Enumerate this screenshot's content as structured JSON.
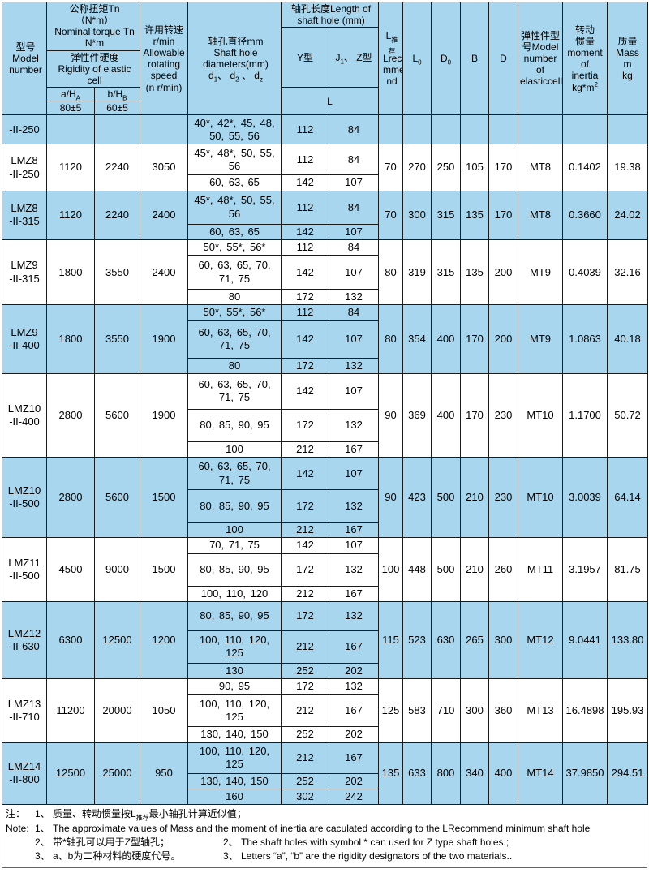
{
  "colors": {
    "row_blue": "#a7d6ee",
    "border": "#1b1b1b"
  },
  "header": {
    "model": "型号\nModel\nnumber",
    "torque_label": "公称扭矩Tn（N*m）\nNominal torque Tn\nN*m",
    "rigidity_label": "弹性件硬度\nRigidity of elastic cell",
    "a_col": "a/H<sub>A</sub>",
    "b_col": "b/H<sub>B</sub>",
    "a_tol": "80±5",
    "b_tol": "60±5",
    "speed": "许用转速\nr/min\nAllowable\nrotating\nspeed\n(n r/min)",
    "diameters": "轴孔直径mm<br>Shaft hole<br>diameters(mm)<br>d<sub>1</sub>、 d<sub>2</sub> 、 d<sub>z</sub>",
    "hole_length": "轴孔长度Length of\nshaft hole (mm)",
    "y_type": "Y型",
    "jz_type": "J<sub>1</sub>、 Z型",
    "l_merged": "L",
    "l_recommend": "L<sub>推荐</sub><br>Lreco<br>mme<br>nd",
    "l0": "L<sub>0</sub>",
    "d0": "D<sub>0</sub>",
    "b": "B",
    "d": "D",
    "elastic_model": "弹性件型<br>号Model<br>number<br>of<br>elasticcell",
    "inertia": "转动<br>惯量<br>moment<br>of<br>inertia<br>kg*m<sup>2</sup>",
    "mass": "质量\nMass\nm\nkg"
  },
  "groups": [
    {
      "model": "-II-250",
      "a": "",
      "b": "",
      "speed": "",
      "rows": [
        {
          "holes": "40*, 42*, 45, 48, 50, 55, 56",
          "y": "112",
          "jz": "84"
        }
      ],
      "lrec": "",
      "l0": "",
      "d0": "",
      "B": "",
      "D": "",
      "mt": "",
      "inertia": "",
      "mass": ""
    },
    {
      "model": "LMZ8\n-II-250",
      "a": "1120",
      "b": "2240",
      "speed": "3050",
      "rows": [
        {
          "holes": "45*, 48*, 50, 55, 56",
          "y": "112",
          "jz": "84"
        },
        {
          "holes": "60, 63, 65",
          "y": "142",
          "jz": "107"
        }
      ],
      "lrec": "70",
      "l0": "270",
      "d0": "250",
      "B": "105",
      "D": "170",
      "mt": "MT8",
      "inertia": "0.1402",
      "mass": "19.38"
    },
    {
      "model": "LMZ8\n-II-315",
      "a": "1120",
      "b": "2240",
      "speed": "2400",
      "rows": [
        {
          "holes": "45*, 48*, 50, 55, 56",
          "y": "112",
          "jz": "84"
        },
        {
          "holes": "60, 63, 65",
          "y": "142",
          "jz": "107"
        }
      ],
      "lrec": "70",
      "l0": "300",
      "d0": "315",
      "B": "135",
      "D": "170",
      "mt": "MT8",
      "inertia": "0.3660",
      "mass": "24.02"
    },
    {
      "model": "LMZ9\n-II-315",
      "a": "1800",
      "b": "3550",
      "speed": "2400",
      "rows": [
        {
          "holes": "50*, 55*, 56*",
          "y": "112",
          "jz": "84"
        },
        {
          "holes": "60, 63, 65, 70, 71, 75",
          "y": "142",
          "jz": "107"
        },
        {
          "holes": "80",
          "y": "172",
          "jz": "132"
        }
      ],
      "lrec": "80",
      "l0": "319",
      "d0": "315",
      "B": "135",
      "D": "200",
      "mt": "MT9",
      "inertia": "0.4039",
      "mass": "32.16"
    },
    {
      "model": "LMZ9\n-II-400",
      "a": "1800",
      "b": "3550",
      "speed": "1900",
      "rows": [
        {
          "holes": "50*, 55*, 56*",
          "y": "112",
          "jz": "84"
        },
        {
          "holes": "60, 63, 65, 70, 71, 75",
          "y": "142",
          "jz": "107"
        },
        {
          "holes": "80",
          "y": "172",
          "jz": "132"
        }
      ],
      "lrec": "80",
      "l0": "354",
      "d0": "400",
      "B": "170",
      "D": "200",
      "mt": "MT9",
      "inertia": "1.0863",
      "mass": "40.18"
    },
    {
      "model": "LMZ10\n-II-400",
      "a": "2800",
      "b": "5600",
      "speed": "1900",
      "rows": [
        {
          "holes": "60, 63, 65, 70, 71, 75",
          "y": "142",
          "jz": "107"
        },
        {
          "holes": "80, 85, 90, 95",
          "y": "172",
          "jz": "132"
        },
        {
          "holes": "100",
          "y": "212",
          "jz": "167"
        }
      ],
      "lrec": "90",
      "l0": "369",
      "d0": "400",
      "B": "170",
      "D": "230",
      "mt": "MT10",
      "inertia": "1.1700",
      "mass": "50.72"
    },
    {
      "model": "LMZ10\n-II-500",
      "a": "2800",
      "b": "5600",
      "speed": "1500",
      "rows": [
        {
          "holes": "60, 63, 65, 70, 71, 75",
          "y": "142",
          "jz": "107"
        },
        {
          "holes": "80, 85, 90, 95",
          "y": "172",
          "jz": "132"
        },
        {
          "holes": "100",
          "y": "212",
          "jz": "167"
        }
      ],
      "lrec": "90",
      "l0": "423",
      "d0": "500",
      "B": "210",
      "D": "230",
      "mt": "MT10",
      "inertia": "3.0039",
      "mass": "64.14"
    },
    {
      "model": "LMZ11\n-II-500",
      "a": "4500",
      "b": "9000",
      "speed": "1500",
      "rows": [
        {
          "holes": "70, 71, 75",
          "y": "142",
          "jz": "107"
        },
        {
          "holes": "80, 85, 90, 95",
          "y": "172",
          "jz": "132"
        },
        {
          "holes": "100, 110, 120",
          "y": "212",
          "jz": "167"
        }
      ],
      "lrec": "100",
      "l0": "448",
      "d0": "500",
      "B": "210",
      "D": "260",
      "mt": "MT11",
      "inertia": "3.1957",
      "mass": "81.75"
    },
    {
      "model": "LMZ12\n-II-630",
      "a": "6300",
      "b": "12500",
      "speed": "1200",
      "rows": [
        {
          "holes": "80, 85, 90, 95",
          "y": "172",
          "jz": "132"
        },
        {
          "holes": "100, 110, 120, 125",
          "y": "212",
          "jz": "167"
        },
        {
          "holes": "130",
          "y": "252",
          "jz": "202"
        }
      ],
      "lrec": "115",
      "l0": "523",
      "d0": "630",
      "B": "265",
      "D": "300",
      "mt": "MT12",
      "inertia": "9.0441",
      "mass": "133.80"
    },
    {
      "model": "LMZ13\n-II-710",
      "a": "11200",
      "b": "20000",
      "speed": "1050",
      "rows": [
        {
          "holes": "90, 95",
          "y": "172",
          "jz": "132"
        },
        {
          "holes": "100, 110, 120, 125",
          "y": "212",
          "jz": "167"
        },
        {
          "holes": "130, 140, 150",
          "y": "252",
          "jz": "202"
        }
      ],
      "lrec": "125",
      "l0": "583",
      "d0": "710",
      "B": "300",
      "D": "360",
      "mt": "MT13",
      "inertia": "16.4898",
      "mass": "195.93"
    },
    {
      "model": "LMZ14\n-II-800",
      "a": "12500",
      "b": "25000",
      "speed": "950",
      "rows": [
        {
          "holes": "100, 110, 120, 125",
          "y": "212",
          "jz": "167"
        },
        {
          "holes": "130, 140, 150",
          "y": "252",
          "jz": "202"
        },
        {
          "holes": "160",
          "y": "302",
          "jz": "242"
        }
      ],
      "lrec": "135",
      "l0": "633",
      "d0": "800",
      "B": "340",
      "D": "400",
      "mt": "MT14",
      "inertia": "37.9850",
      "mass": "294.51"
    }
  ],
  "notes": {
    "cn1_prefix": "注：",
    "cn1": "1、 质量、转动惯量按L<sub>推荐</sub>最小轴孔计算近似值；",
    "en1_prefix": "Note:",
    "en1": "1、 The approximate values of Mass and the moment of inertia are caculated according to the LRecommend minimum shaft hole",
    "cn2": "2、 带*轴孔可以用于Z型轴孔；",
    "en2": "2、 The shaft holes with symbol * can used for Z type shaft holes.;",
    "cn3": "3、 a、b为二种材料的硬度代号。",
    "en3": "3、 Letters “a”, “b” are the rigidity designators of the two materials.."
  }
}
